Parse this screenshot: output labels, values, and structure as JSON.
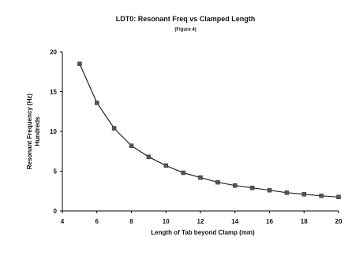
{
  "chart_data": {
    "type": "line",
    "title": "LDT0:  Resonant Freq vs Clamped Length",
    "subtitle": "(Figure 4)",
    "xlabel": "Length of Tab beyond Clamp (mm)",
    "ylabel_line1": "Resonant Frequency (Hz)",
    "ylabel_line2": "Hundreds",
    "xlim": [
      4,
      20
    ],
    "ylim": [
      0,
      20
    ],
    "x_ticks": [
      "4",
      "6",
      "8",
      "10",
      "12",
      "14",
      "16",
      "18",
      "20"
    ],
    "y_ticks": [
      "0",
      "5",
      "10",
      "15",
      "20"
    ],
    "grid": false,
    "series": [
      {
        "x": [
          5,
          6,
          7,
          8,
          9,
          10,
          11,
          12,
          13,
          14,
          15,
          16,
          17,
          18,
          19,
          20
        ],
        "y": [
          18.5,
          13.6,
          10.4,
          8.2,
          6.8,
          5.7,
          4.8,
          4.2,
          3.6,
          3.2,
          2.9,
          2.6,
          2.3,
          2.1,
          1.9,
          1.75
        ]
      }
    ],
    "colors": {
      "line": "#222222",
      "marker": "#555555",
      "axis": "#000000"
    }
  }
}
